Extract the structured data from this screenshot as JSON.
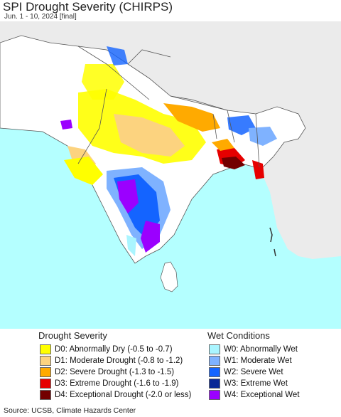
{
  "header": {
    "title": "SPI Drought Severity (CHIRPS)",
    "subtitle": "Jun. 1 - 10, 2024 [final]"
  },
  "legend": {
    "drought_title": "Drought Severity",
    "wet_title": "Wet Conditions",
    "drought_items": [
      {
        "label": "D0: Abnormally Dry (-0.5 to -0.7)",
        "color": "#ffff00"
      },
      {
        "label": "D1: Moderate Drought (-0.8 to -1.2)",
        "color": "#fcd37f"
      },
      {
        "label": "D2: Severe Drought (-1.3 to -1.5)",
        "color": "#ffaa00"
      },
      {
        "label": "D3: Extreme Drought (-1.6 to -1.9)",
        "color": "#e60000"
      },
      {
        "label": "D4: Exceptional Drought (-2.0 or less)",
        "color": "#730000"
      }
    ],
    "wet_items": [
      {
        "label": "W0: Abnormally Wet",
        "color": "#aaf5ff"
      },
      {
        "label": "W1: Moderate Wet",
        "color": "#7fb2ff"
      },
      {
        "label": "W2: Severe Wet",
        "color": "#1464ff"
      },
      {
        "label": "W3: Extreme Wet",
        "color": "#0a2896"
      },
      {
        "label": "W4: Exceptional Wet",
        "color": "#9b00ff"
      }
    ]
  },
  "colors": {
    "water": "#b4ffff",
    "land_out": "#ebebeb",
    "land_in": "#ffffff",
    "border": "#555555"
  },
  "source": "Source: UCSB, Climate Hazards Center"
}
